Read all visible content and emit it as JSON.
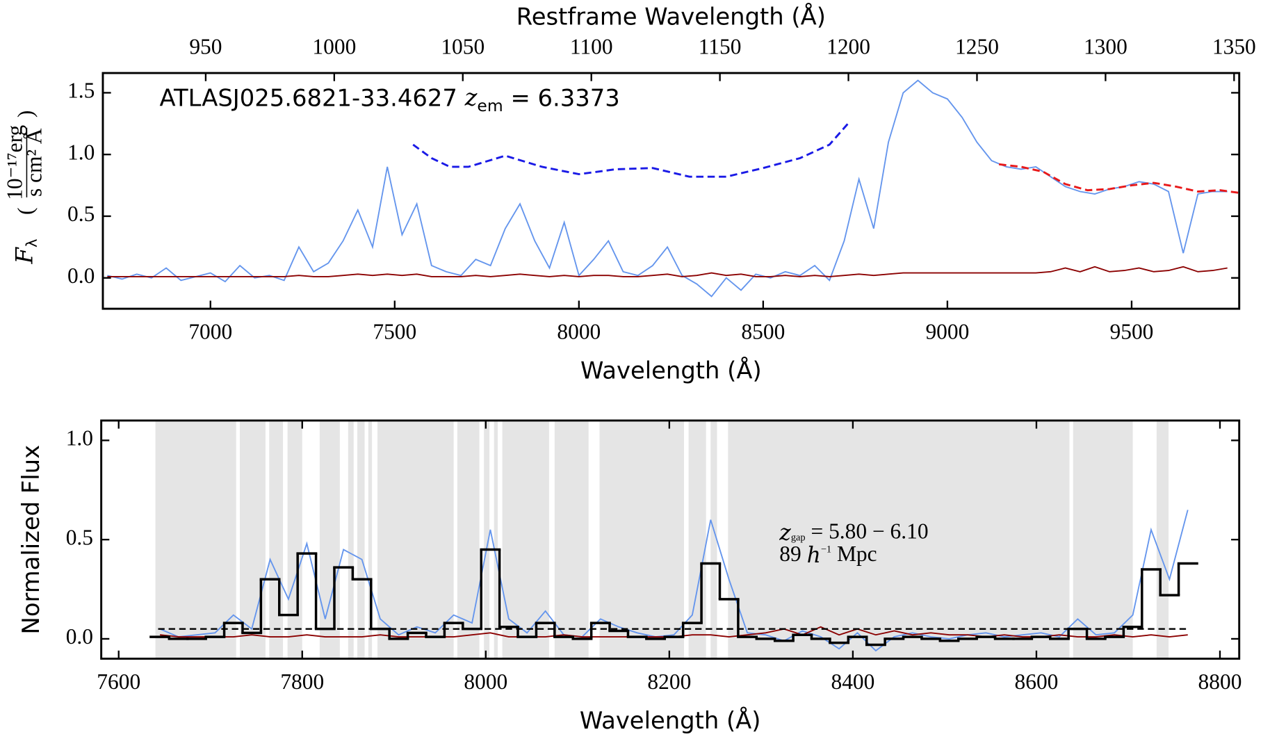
{
  "chart_data": [
    {
      "type": "line",
      "title": [
        {
          "text": "ATLASJ025.6821-33.4627 "
        },
        {
          "text": "z",
          "style": "italic"
        },
        {
          "text": "em",
          "style": "sub"
        },
        {
          "text": " = 6.3373"
        }
      ],
      "title_color": "#1f1fe6",
      "xlabel": "Wavelength (Å)",
      "ylabel": [
        {
          "text": "F",
          "style": "italic"
        },
        {
          "text": "λ",
          "style": "sub"
        }
      ],
      "yunit": {
        "numerator": "10⁻¹⁷erg",
        "denominator": "s cm² Å"
      },
      "x2label": "Restframe Wavelength (Å)",
      "xlim": [
        6708,
        9792
      ],
      "xticks": [
        7000,
        7500,
        8000,
        8500,
        9000,
        9500
      ],
      "x2lim": [
        910,
        1352
      ],
      "x2ticks": [
        950,
        1000,
        1050,
        1100,
        1150,
        1200,
        1250,
        1300,
        1350
      ],
      "ylim": [
        -0.25,
        1.66
      ],
      "yticks": [
        {
          "value": 0,
          "label": "0.0"
        },
        {
          "value": 0.5,
          "label": "0.5"
        },
        {
          "value": 1,
          "label": "1.0"
        },
        {
          "value": 1.5,
          "label": "1.5"
        }
      ],
      "series": [
        {
          "color": "#6495ed",
          "linestyle": "solid",
          "x": [
            6720,
            6760,
            6800,
            6840,
            6880,
            6920,
            6960,
            7000,
            7040,
            7080,
            7120,
            7160,
            7200,
            7240,
            7280,
            7320,
            7360,
            7400,
            7440,
            7480,
            7520,
            7560,
            7600,
            7640,
            7680,
            7720,
            7760,
            7800,
            7840,
            7880,
            7920,
            7960,
            8000,
            8040,
            8080,
            8120,
            8160,
            8200,
            8240,
            8280,
            8320,
            8360,
            8400,
            8440,
            8480,
            8520,
            8560,
            8600,
            8640,
            8680,
            8720,
            8760,
            8800,
            8840,
            8880,
            8920,
            8960,
            9000,
            9040,
            9080,
            9120,
            9160,
            9200,
            9240,
            9280,
            9320,
            9360,
            9400,
            9440,
            9480,
            9520,
            9560,
            9600,
            9640,
            9680,
            9720,
            9760
          ],
          "values": [
            0.02,
            -0.01,
            0.03,
            0.0,
            0.08,
            -0.02,
            0.01,
            0.04,
            -0.03,
            0.1,
            0.0,
            0.02,
            -0.02,
            0.25,
            0.05,
            0.12,
            0.3,
            0.55,
            0.25,
            0.9,
            0.35,
            0.6,
            0.1,
            0.05,
            0.02,
            0.15,
            0.1,
            0.4,
            0.6,
            0.3,
            0.08,
            0.45,
            0.02,
            0.15,
            0.3,
            0.05,
            0.02,
            0.1,
            0.25,
            0.02,
            -0.05,
            -0.15,
            0.0,
            -0.1,
            0.03,
            0.0,
            0.05,
            0.02,
            0.1,
            -0.02,
            0.3,
            0.8,
            0.4,
            1.1,
            1.5,
            1.6,
            1.5,
            1.45,
            1.3,
            1.1,
            0.95,
            0.9,
            0.88,
            0.9,
            0.82,
            0.74,
            0.7,
            0.68,
            0.72,
            0.74,
            0.78,
            0.76,
            0.7,
            0.2,
            0.68,
            0.7,
            0.7
          ]
        },
        {
          "color": "#8b0000",
          "linestyle": "solid",
          "x": [
            6720,
            6760,
            6800,
            6840,
            6880,
            6920,
            6960,
            7000,
            7040,
            7080,
            7120,
            7160,
            7200,
            7240,
            7280,
            7320,
            7360,
            7400,
            7440,
            7480,
            7520,
            7560,
            7600,
            7640,
            7680,
            7720,
            7760,
            7800,
            7840,
            7880,
            7920,
            7960,
            8000,
            8040,
            8080,
            8120,
            8160,
            8200,
            8240,
            8280,
            8320,
            8360,
            8400,
            8440,
            8480,
            8520,
            8560,
            8600,
            8640,
            8680,
            8720,
            8760,
            8800,
            8840,
            8880,
            8920,
            8960,
            9000,
            9040,
            9080,
            9120,
            9160,
            9200,
            9240,
            9280,
            9320,
            9360,
            9400,
            9440,
            9480,
            9520,
            9560,
            9600,
            9640,
            9680,
            9720,
            9760
          ],
          "values": [
            0.01,
            0.01,
            0.01,
            0.01,
            0.01,
            0.01,
            0.01,
            0.01,
            0.01,
            0.01,
            0.01,
            0.01,
            0.01,
            0.02,
            0.01,
            0.01,
            0.02,
            0.03,
            0.02,
            0.03,
            0.02,
            0.03,
            0.01,
            0.01,
            0.01,
            0.02,
            0.01,
            0.02,
            0.03,
            0.02,
            0.01,
            0.02,
            0.01,
            0.02,
            0.02,
            0.01,
            0.01,
            0.02,
            0.03,
            0.01,
            0.02,
            0.04,
            0.02,
            0.03,
            0.01,
            0.01,
            0.02,
            0.01,
            0.02,
            0.01,
            0.02,
            0.03,
            0.02,
            0.03,
            0.04,
            0.04,
            0.04,
            0.04,
            0.04,
            0.04,
            0.04,
            0.04,
            0.04,
            0.04,
            0.05,
            0.08,
            0.05,
            0.09,
            0.05,
            0.06,
            0.08,
            0.05,
            0.06,
            0.09,
            0.05,
            0.06,
            0.08
          ]
        },
        {
          "color": "#e8191a",
          "linestyle": "dashed",
          "x": [
            9140,
            9200,
            9260,
            9320,
            9380,
            9440,
            9500,
            9560,
            9620,
            9680,
            9740,
            9790
          ],
          "values": [
            0.92,
            0.9,
            0.86,
            0.76,
            0.71,
            0.72,
            0.75,
            0.77,
            0.74,
            0.7,
            0.71,
            0.69
          ]
        },
        {
          "color": "#1a1ae6",
          "linestyle": "dashed",
          "x": [
            7550,
            7600,
            7650,
            7700,
            7800,
            7900,
            8000,
            8100,
            8200,
            8300,
            8400,
            8500,
            8600,
            8680,
            8730
          ],
          "values": [
            1.08,
            0.97,
            0.9,
            0.9,
            0.99,
            0.9,
            0.84,
            0.88,
            0.89,
            0.82,
            0.82,
            0.89,
            0.97,
            1.08,
            1.25
          ]
        }
      ]
    },
    {
      "type": "line",
      "xlabel": "Wavelength (Å)",
      "ylabel": "Normalized Flux",
      "xlim": [
        7581,
        8821
      ],
      "xticks": [
        7600,
        7800,
        8000,
        8200,
        8400,
        8600,
        8800
      ],
      "ylim": [
        -0.1,
        1.1
      ],
      "yticks": [
        {
          "value": 0,
          "label": "0.0"
        },
        {
          "value": 0.5,
          "label": "0.5"
        },
        {
          "value": 1,
          "label": "1.0"
        }
      ],
      "shaded_regions": [
        [
          7640,
          7728
        ],
        [
          7732,
          7760
        ],
        [
          7764,
          7779
        ],
        [
          7784,
          7800
        ],
        [
          7819,
          7841
        ],
        [
          7850,
          7856
        ],
        [
          7860,
          7868
        ],
        [
          7872,
          7876
        ],
        [
          7882,
          7965
        ],
        [
          7969,
          7993
        ],
        [
          7998,
          8004
        ],
        [
          8009,
          8013
        ],
        [
          8018,
          8069
        ],
        [
          8075,
          8112
        ],
        [
          8124,
          8216
        ],
        [
          8221,
          8240
        ],
        [
          8245,
          8252
        ],
        [
          8264,
          8636
        ],
        [
          8640,
          8705
        ],
        [
          8731,
          8744
        ]
      ],
      "shade_color": "#e5e5e5",
      "reference_line": {
        "y": 0.05,
        "x": [
          7643,
          8763
        ],
        "color": "#000000"
      },
      "annotation": [
        [
          {
            "text": "z",
            "style": "italic"
          },
          {
            "text": "gap",
            "style": "sub"
          },
          {
            "text": " = 5.80 − 6.10"
          }
        ],
        [
          {
            "text": "89 "
          },
          {
            "text": "h",
            "style": "italic"
          },
          {
            "text": "−1",
            "style": "sup"
          },
          {
            "text": " Mpc"
          }
        ]
      ],
      "series": [
        {
          "color": "#6495ed",
          "linestyle": "solid",
          "x": [
            7645,
            7665,
            7685,
            7705,
            7725,
            7745,
            7765,
            7785,
            7805,
            7825,
            7845,
            7865,
            7885,
            7905,
            7925,
            7945,
            7965,
            7985,
            8005,
            8025,
            8045,
            8065,
            8085,
            8105,
            8125,
            8145,
            8165,
            8185,
            8205,
            8225,
            8245,
            8265,
            8285,
            8305,
            8325,
            8345,
            8365,
            8385,
            8405,
            8425,
            8445,
            8465,
            8485,
            8505,
            8525,
            8545,
            8565,
            8585,
            8605,
            8625,
            8645,
            8665,
            8685,
            8705,
            8725,
            8745,
            8765
          ],
          "values": [
            0.05,
            0.01,
            0.02,
            0.03,
            0.12,
            0.05,
            0.4,
            0.2,
            0.48,
            0.1,
            0.45,
            0.4,
            0.1,
            0.02,
            0.06,
            0.03,
            0.12,
            0.08,
            0.55,
            0.1,
            0.03,
            0.14,
            0.02,
            0.01,
            0.1,
            0.06,
            0.03,
            0.01,
            0.02,
            0.12,
            0.6,
            0.3,
            0.03,
            0.02,
            -0.01,
            0.04,
            0.01,
            -0.05,
            0.03,
            -0.06,
            0.01,
            0.03,
            0.01,
            0.0,
            0.02,
            0.03,
            0.01,
            0.02,
            0.03,
            0.01,
            0.1,
            0.02,
            0.03,
            0.12,
            0.55,
            0.3,
            0.65
          ]
        },
        {
          "color": "#8b0000",
          "linestyle": "solid",
          "x": [
            7645,
            7665,
            7685,
            7705,
            7725,
            7745,
            7765,
            7785,
            7805,
            7825,
            7845,
            7865,
            7885,
            7905,
            7925,
            7945,
            7965,
            7985,
            8005,
            8025,
            8045,
            8065,
            8085,
            8105,
            8125,
            8145,
            8165,
            8185,
            8205,
            8225,
            8245,
            8265,
            8285,
            8305,
            8325,
            8345,
            8365,
            8385,
            8405,
            8425,
            8445,
            8465,
            8485,
            8505,
            8525,
            8545,
            8565,
            8585,
            8605,
            8625,
            8645,
            8665,
            8685,
            8705,
            8725,
            8745,
            8765
          ],
          "values": [
            0.02,
            0.01,
            0.01,
            0.01,
            0.01,
            0.02,
            0.01,
            0.01,
            0.02,
            0.01,
            0.01,
            0.01,
            0.02,
            0.01,
            0.01,
            0.01,
            0.01,
            0.02,
            0.03,
            0.01,
            0.01,
            0.01,
            0.02,
            0.01,
            0.01,
            0.01,
            0.01,
            0.01,
            0.01,
            0.02,
            0.02,
            0.01,
            0.02,
            0.03,
            0.05,
            0.02,
            0.06,
            0.02,
            0.05,
            0.02,
            0.04,
            0.02,
            0.03,
            0.02,
            0.02,
            0.01,
            0.02,
            0.01,
            0.01,
            0.02,
            0.01,
            0.01,
            0.02,
            0.01,
            0.02,
            0.01,
            0.02
          ]
        },
        {
          "color": "#000000",
          "linestyle": "solid",
          "drawstyle": "steps-mid",
          "x": [
            7645,
            7665,
            7685,
            7705,
            7725,
            7745,
            7765,
            7785,
            7805,
            7825,
            7845,
            7865,
            7885,
            7905,
            7925,
            7945,
            7965,
            7985,
            8005,
            8025,
            8045,
            8065,
            8085,
            8105,
            8125,
            8145,
            8165,
            8185,
            8205,
            8225,
            8245,
            8265,
            8285,
            8305,
            8325,
            8345,
            8365,
            8385,
            8405,
            8425,
            8445,
            8465,
            8485,
            8505,
            8525,
            8545,
            8565,
            8585,
            8605,
            8625,
            8645,
            8665,
            8685,
            8705,
            8725,
            8745,
            8765
          ],
          "values": [
            0.01,
            0.0,
            0.0,
            0.01,
            0.08,
            0.03,
            0.3,
            0.12,
            0.43,
            0.05,
            0.36,
            0.3,
            0.05,
            0.0,
            0.03,
            0.01,
            0.08,
            0.05,
            0.45,
            0.06,
            0.01,
            0.08,
            0.01,
            0.0,
            0.08,
            0.04,
            0.01,
            0.0,
            0.01,
            0.08,
            0.38,
            0.2,
            0.01,
            0.0,
            -0.01,
            0.02,
            0.0,
            -0.02,
            0.01,
            -0.03,
            0.0,
            0.01,
            0.0,
            -0.01,
            0.0,
            0.01,
            0.0,
            0.0,
            0.01,
            0.0,
            0.05,
            0.0,
            0.01,
            0.06,
            0.35,
            0.22,
            0.38
          ]
        }
      ]
    }
  ]
}
